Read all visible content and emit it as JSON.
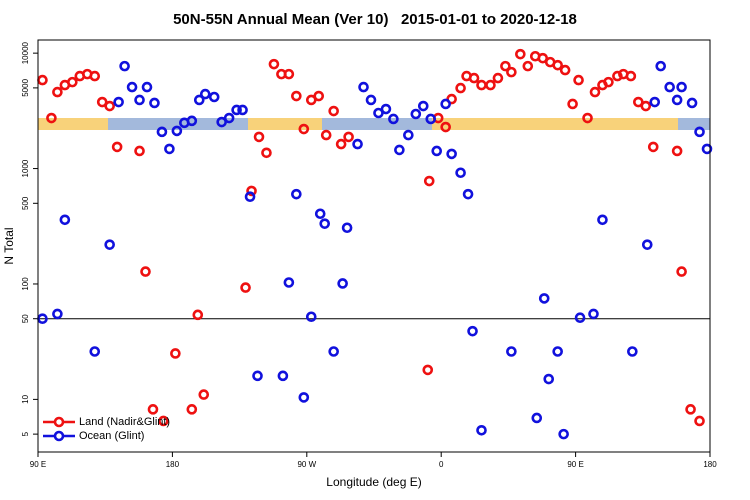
{
  "chart_data": {
    "type": "scatter",
    "title": "50N-55N Annual Mean (Ver 10)   2015-01-01 to 2020-12-18",
    "xlabel": "Longitude (deg E)",
    "ylabel": "N Total",
    "xlim": [
      90,
      540
    ],
    "xticks": [
      {
        "value": 90,
        "label": "90 E"
      },
      {
        "value": 180,
        "label": "180"
      },
      {
        "value": 270,
        "label": "90 W"
      },
      {
        "value": 360,
        "label": "0"
      },
      {
        "value": 450,
        "label": "90 E"
      },
      {
        "value": 540,
        "label": "180"
      }
    ],
    "ylim": [
      3.5,
      13000
    ],
    "yscale": "log",
    "yticks": [
      5,
      10,
      50,
      100,
      500,
      1000,
      5000,
      10000
    ],
    "hline": 50,
    "legend": "lower left",
    "series": [
      {
        "name": "Land (Nadir&Glint)",
        "color": "#ee1111",
        "x": [
          93,
          99,
          103,
          108,
          113,
          118,
          123,
          128,
          133,
          138,
          143,
          158,
          162,
          167,
          174,
          182,
          193,
          197,
          201,
          229,
          233,
          238,
          243,
          248,
          253,
          258,
          263,
          268,
          273,
          278,
          283,
          288,
          293,
          298,
          351,
          352,
          358,
          363,
          367,
          373,
          377,
          382,
          387,
          393,
          398,
          403,
          407,
          413,
          418,
          423,
          428,
          433,
          438,
          443,
          448,
          452,
          458,
          463,
          468,
          472,
          478,
          482,
          487,
          492,
          497,
          502,
          518,
          521,
          527,
          533
        ],
        "values": [
          5840,
          2740,
          4600,
          5290,
          5610,
          6330,
          6580,
          6330,
          3770,
          3480,
          1540,
          1420,
          128,
          8.2,
          6.5,
          25,
          8.2,
          54,
          11,
          93,
          640,
          1880,
          1370,
          8030,
          6580,
          6580,
          4250,
          2200,
          3930,
          4250,
          1950,
          3150,
          1630,
          1880,
          18,
          780,
          2740,
          2290,
          4000,
          4980,
          6330,
          6080,
          5290,
          5290,
          6080,
          7720,
          6850,
          9800,
          7720,
          9400,
          9050,
          8360,
          7870,
          7130,
          3630,
          5840,
          2740,
          4600,
          5290,
          5610,
          6330,
          6580,
          6330,
          3770,
          3480,
          1540,
          1420,
          128,
          8.2,
          6.5
        ]
      },
      {
        "name": "Ocean (Glint)",
        "color": "#1111dd",
        "x": [
          93,
          103,
          108,
          128,
          138,
          144,
          148,
          153,
          158,
          163,
          168,
          173,
          178,
          183,
          188,
          193,
          198,
          202,
          208,
          213,
          218,
          223,
          227,
          232,
          237,
          254,
          258,
          263,
          268,
          273,
          279,
          282,
          288,
          294,
          297,
          304,
          308,
          313,
          318,
          323,
          328,
          332,
          338,
          343,
          348,
          353,
          357,
          363,
          367,
          373,
          378,
          381,
          387,
          407,
          424,
          429,
          432,
          438,
          442,
          453,
          462,
          468,
          488,
          498,
          503,
          507,
          513,
          518,
          521,
          528,
          533,
          538
        ],
        "values": [
          50,
          55,
          360,
          26,
          219,
          3770,
          7720,
          5080,
          3930,
          5080,
          3700,
          2080,
          1480,
          2120,
          2490,
          2590,
          3930,
          4420,
          4170,
          2530,
          2740,
          3220,
          3220,
          570,
          16,
          16,
          103,
          600,
          10.4,
          52,
          406,
          333,
          26,
          101,
          307,
          1630,
          5080,
          3930,
          3030,
          3280,
          2690,
          1450,
          1950,
          2970,
          3480,
          2690,
          1420,
          3630,
          1340,
          920,
          600,
          39,
          5.4,
          26,
          6.9,
          75,
          15,
          26,
          5.0,
          51,
          55,
          360,
          26,
          219,
          3770,
          7720,
          5080,
          3930,
          5080,
          3700,
          2080,
          1480
        ]
      }
    ]
  }
}
